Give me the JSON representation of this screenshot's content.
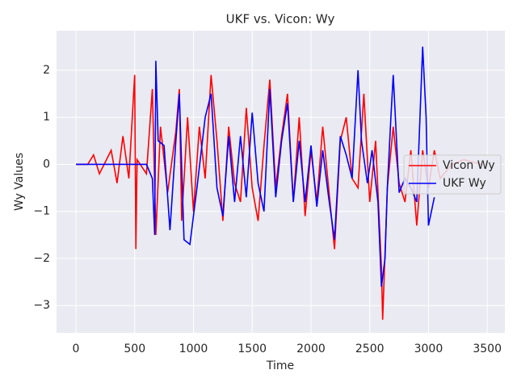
{
  "chart_data": {
    "type": "line",
    "title": "UKF vs. Vicon: Wy",
    "x_label": "Time",
    "y_label": "Wy Values",
    "xlim": [
      -165,
      3650
    ],
    "ylim": [
      -3.58,
      2.84
    ],
    "xticks": [
      0,
      500,
      1000,
      1500,
      2000,
      2500,
      3000,
      3500
    ],
    "yticks": [
      {
        "value": -3,
        "label": "−3"
      },
      {
        "value": -2,
        "label": "−2"
      },
      {
        "value": -1,
        "label": "−1"
      },
      0,
      1,
      2
    ],
    "grid": true,
    "legend": "right",
    "series": [
      {
        "name": "Vicon Wy",
        "color": "#ff0000",
        "x": [
          0,
          100,
          150,
          200,
          300,
          350,
          400,
          450,
          500,
          510,
          520,
          600,
          650,
          680,
          720,
          780,
          850,
          880,
          900,
          950,
          1000,
          1050,
          1100,
          1150,
          1200,
          1250,
          1300,
          1350,
          1400,
          1450,
          1500,
          1550,
          1600,
          1650,
          1700,
          1750,
          1800,
          1850,
          1900,
          1950,
          2000,
          2050,
          2100,
          2150,
          2200,
          2250,
          2300,
          2350,
          2400,
          2450,
          2500,
          2550,
          2600,
          2610,
          2650,
          2700,
          2750,
          2800,
          2850,
          2900,
          2950,
          3000,
          3050,
          3100,
          3200,
          3300,
          3450
        ],
        "values": [
          0,
          0,
          0.2,
          -0.2,
          0.3,
          -0.4,
          0.6,
          -0.3,
          1.9,
          -1.8,
          0.1,
          -0.2,
          1.6,
          -1.5,
          0.8,
          -0.6,
          0.7,
          1.6,
          -1.2,
          1.0,
          -1.0,
          0.8,
          -0.3,
          1.9,
          0.5,
          -1.2,
          0.8,
          -0.4,
          -0.8,
          1.2,
          -0.5,
          -1.2,
          0.4,
          1.8,
          -0.5,
          0.6,
          1.5,
          -0.8,
          1.0,
          -1.1,
          0.3,
          -0.8,
          0.8,
          -0.5,
          -1.8,
          0.5,
          1.0,
          -0.3,
          -0.5,
          1.5,
          -0.8,
          0.5,
          -2.2,
          -3.3,
          -0.5,
          0.8,
          -0.4,
          -0.8,
          0.3,
          -1.3,
          0.3,
          -0.5,
          0.3,
          -0.3,
          0,
          0.1,
          0
        ]
      },
      {
        "name": "UKF Wy",
        "color": "#0000ff",
        "x": [
          0,
          500,
          600,
          650,
          670,
          680,
          700,
          750,
          800,
          850,
          880,
          920,
          970,
          1030,
          1100,
          1150,
          1200,
          1250,
          1300,
          1350,
          1400,
          1450,
          1500,
          1550,
          1600,
          1650,
          1700,
          1750,
          1800,
          1850,
          1900,
          1950,
          2000,
          2050,
          2100,
          2150,
          2200,
          2250,
          2300,
          2350,
          2400,
          2430,
          2480,
          2520,
          2570,
          2600,
          2630,
          2650,
          2680,
          2700,
          2750,
          2800,
          2850,
          2900,
          2950,
          2980,
          3000,
          3050
        ],
        "values": [
          0,
          0,
          0,
          -0.3,
          -1.5,
          2.2,
          0.5,
          0.4,
          -1.4,
          0.5,
          1.5,
          -1.6,
          -1.7,
          -0.5,
          1.0,
          1.5,
          -0.5,
          -1.1,
          0.6,
          -0.8,
          0.6,
          -0.7,
          1.1,
          -0.4,
          -1.0,
          1.6,
          -0.7,
          0.5,
          1.3,
          -0.8,
          0.5,
          -0.8,
          0.4,
          -0.9,
          0.3,
          -0.7,
          -1.6,
          0.6,
          0.2,
          -0.3,
          2.0,
          0.5,
          -0.4,
          0.3,
          -0.8,
          -2.6,
          -2.0,
          -0.5,
          1.0,
          1.9,
          -0.6,
          -0.3,
          -0.5,
          -0.8,
          2.5,
          1.0,
          -1.3,
          -0.7
        ]
      }
    ]
  }
}
